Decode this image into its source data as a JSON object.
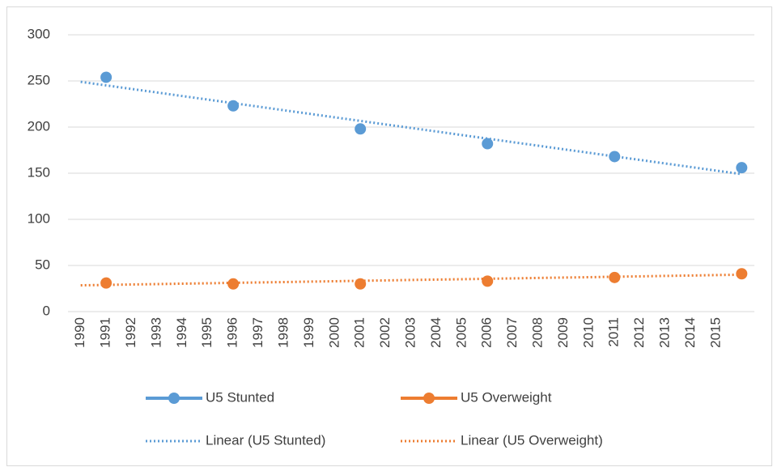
{
  "chart_data": {
    "type": "line",
    "categories": [
      "1990",
      "1991",
      "1992",
      "1993",
      "1994",
      "1995",
      "1996",
      "1997",
      "1998",
      "1999",
      "2000",
      "2001",
      "2002",
      "2003",
      "2004",
      "2005",
      "2006",
      "2007",
      "2008",
      "2009",
      "2010",
      "2011",
      "2012",
      "2013",
      "2014",
      "2015",
      null
    ],
    "series": [
      {
        "name": "U5 Stunted",
        "color": "#5b9bd5",
        "style": "markers",
        "values": [
          null,
          254,
          null,
          null,
          null,
          null,
          223,
          null,
          null,
          null,
          null,
          198,
          null,
          null,
          null,
          null,
          182,
          null,
          null,
          null,
          null,
          168,
          null,
          null,
          null,
          null,
          156
        ]
      },
      {
        "name": "U5 Overweight",
        "color": "#ed7d31",
        "style": "markers",
        "values": [
          null,
          31,
          null,
          null,
          null,
          null,
          30,
          null,
          null,
          null,
          null,
          30,
          null,
          null,
          null,
          null,
          33,
          null,
          null,
          null,
          null,
          37,
          null,
          null,
          null,
          null,
          41
        ]
      },
      {
        "name": "Linear  (U5 Stunted)",
        "color": "#5b9bd5",
        "style": "dotted",
        "values": [
          249,
          245.2,
          241.3,
          237.5,
          233.6,
          229.8,
          225.9,
          222.1,
          218.2,
          214.4,
          210.5,
          206.7,
          202.8,
          199,
          195.2,
          191.3,
          187.5,
          183.6,
          179.8,
          175.9,
          172.1,
          168.2,
          164.4,
          160.5,
          156.7,
          152.8,
          149
        ]
      },
      {
        "name": "Linear  (U5 Overweight)",
        "color": "#ed7d31",
        "style": "dotted",
        "values": [
          28.5,
          28.9,
          29.4,
          29.8,
          30.3,
          30.7,
          31.2,
          31.6,
          32,
          32.5,
          32.9,
          33.4,
          33.8,
          34.3,
          34.7,
          35.1,
          35.6,
          36,
          36.5,
          36.9,
          37.3,
          37.8,
          38.2,
          38.7,
          39.1,
          39.6,
          40
        ]
      }
    ],
    "ylim": [
      0,
      300
    ],
    "yticks": [
      0,
      50,
      100,
      150,
      200,
      250,
      300
    ],
    "grid": true,
    "legend": "bottom"
  }
}
